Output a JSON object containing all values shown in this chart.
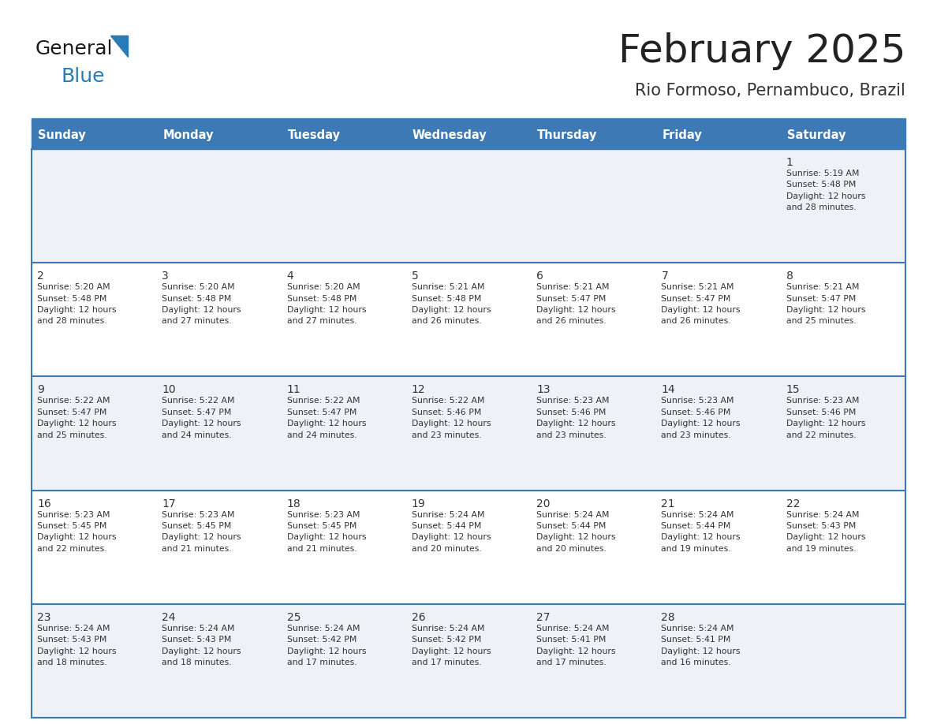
{
  "title": "February 2025",
  "subtitle": "Rio Formoso, Pernambuco, Brazil",
  "days_of_week": [
    "Sunday",
    "Monday",
    "Tuesday",
    "Wednesday",
    "Thursday",
    "Friday",
    "Saturday"
  ],
  "header_bg": "#3d7ab5",
  "header_text": "#ffffff",
  "cell_bg_light": "#eef1f5",
  "cell_bg_white": "#ffffff",
  "border_color": "#3d7ab5",
  "day_number_color": "#333333",
  "cell_text_color": "#333333",
  "title_color": "#222222",
  "subtitle_color": "#333333",
  "logo_general_color": "#1a1a1a",
  "logo_blue_color": "#2a7ab5",
  "weeks": [
    [
      {
        "day": null,
        "info": null
      },
      {
        "day": null,
        "info": null
      },
      {
        "day": null,
        "info": null
      },
      {
        "day": null,
        "info": null
      },
      {
        "day": null,
        "info": null
      },
      {
        "day": null,
        "info": null
      },
      {
        "day": 1,
        "info": "Sunrise: 5:19 AM\nSunset: 5:48 PM\nDaylight: 12 hours\nand 28 minutes."
      }
    ],
    [
      {
        "day": 2,
        "info": "Sunrise: 5:20 AM\nSunset: 5:48 PM\nDaylight: 12 hours\nand 28 minutes."
      },
      {
        "day": 3,
        "info": "Sunrise: 5:20 AM\nSunset: 5:48 PM\nDaylight: 12 hours\nand 27 minutes."
      },
      {
        "day": 4,
        "info": "Sunrise: 5:20 AM\nSunset: 5:48 PM\nDaylight: 12 hours\nand 27 minutes."
      },
      {
        "day": 5,
        "info": "Sunrise: 5:21 AM\nSunset: 5:48 PM\nDaylight: 12 hours\nand 26 minutes."
      },
      {
        "day": 6,
        "info": "Sunrise: 5:21 AM\nSunset: 5:47 PM\nDaylight: 12 hours\nand 26 minutes."
      },
      {
        "day": 7,
        "info": "Sunrise: 5:21 AM\nSunset: 5:47 PM\nDaylight: 12 hours\nand 26 minutes."
      },
      {
        "day": 8,
        "info": "Sunrise: 5:21 AM\nSunset: 5:47 PM\nDaylight: 12 hours\nand 25 minutes."
      }
    ],
    [
      {
        "day": 9,
        "info": "Sunrise: 5:22 AM\nSunset: 5:47 PM\nDaylight: 12 hours\nand 25 minutes."
      },
      {
        "day": 10,
        "info": "Sunrise: 5:22 AM\nSunset: 5:47 PM\nDaylight: 12 hours\nand 24 minutes."
      },
      {
        "day": 11,
        "info": "Sunrise: 5:22 AM\nSunset: 5:47 PM\nDaylight: 12 hours\nand 24 minutes."
      },
      {
        "day": 12,
        "info": "Sunrise: 5:22 AM\nSunset: 5:46 PM\nDaylight: 12 hours\nand 23 minutes."
      },
      {
        "day": 13,
        "info": "Sunrise: 5:23 AM\nSunset: 5:46 PM\nDaylight: 12 hours\nand 23 minutes."
      },
      {
        "day": 14,
        "info": "Sunrise: 5:23 AM\nSunset: 5:46 PM\nDaylight: 12 hours\nand 23 minutes."
      },
      {
        "day": 15,
        "info": "Sunrise: 5:23 AM\nSunset: 5:46 PM\nDaylight: 12 hours\nand 22 minutes."
      }
    ],
    [
      {
        "day": 16,
        "info": "Sunrise: 5:23 AM\nSunset: 5:45 PM\nDaylight: 12 hours\nand 22 minutes."
      },
      {
        "day": 17,
        "info": "Sunrise: 5:23 AM\nSunset: 5:45 PM\nDaylight: 12 hours\nand 21 minutes."
      },
      {
        "day": 18,
        "info": "Sunrise: 5:23 AM\nSunset: 5:45 PM\nDaylight: 12 hours\nand 21 minutes."
      },
      {
        "day": 19,
        "info": "Sunrise: 5:24 AM\nSunset: 5:44 PM\nDaylight: 12 hours\nand 20 minutes."
      },
      {
        "day": 20,
        "info": "Sunrise: 5:24 AM\nSunset: 5:44 PM\nDaylight: 12 hours\nand 20 minutes."
      },
      {
        "day": 21,
        "info": "Sunrise: 5:24 AM\nSunset: 5:44 PM\nDaylight: 12 hours\nand 19 minutes."
      },
      {
        "day": 22,
        "info": "Sunrise: 5:24 AM\nSunset: 5:43 PM\nDaylight: 12 hours\nand 19 minutes."
      }
    ],
    [
      {
        "day": 23,
        "info": "Sunrise: 5:24 AM\nSunset: 5:43 PM\nDaylight: 12 hours\nand 18 minutes."
      },
      {
        "day": 24,
        "info": "Sunrise: 5:24 AM\nSunset: 5:43 PM\nDaylight: 12 hours\nand 18 minutes."
      },
      {
        "day": 25,
        "info": "Sunrise: 5:24 AM\nSunset: 5:42 PM\nDaylight: 12 hours\nand 17 minutes."
      },
      {
        "day": 26,
        "info": "Sunrise: 5:24 AM\nSunset: 5:42 PM\nDaylight: 12 hours\nand 17 minutes."
      },
      {
        "day": 27,
        "info": "Sunrise: 5:24 AM\nSunset: 5:41 PM\nDaylight: 12 hours\nand 17 minutes."
      },
      {
        "day": 28,
        "info": "Sunrise: 5:24 AM\nSunset: 5:41 PM\nDaylight: 12 hours\nand 16 minutes."
      },
      {
        "day": null,
        "info": null
      }
    ]
  ],
  "fig_width": 11.88,
  "fig_height": 9.18,
  "dpi": 100
}
